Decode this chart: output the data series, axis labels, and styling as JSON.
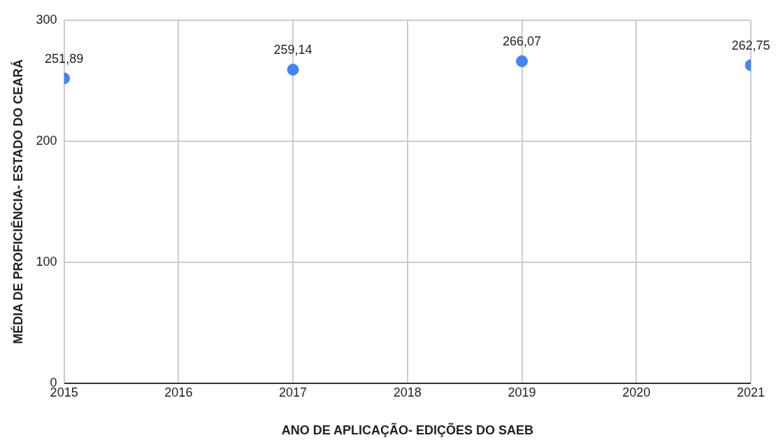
{
  "chart_data": {
    "type": "scatter",
    "xlabel": "ANO DE APLICAÇÃO- EDIÇÕES DO SAEB",
    "ylabel": "MÉDIA DE PROFICIÊNCIA- ESTADO DO CEARÁ",
    "x": [
      2015,
      2017,
      2019,
      2021
    ],
    "series": [
      {
        "color": "#4285f4",
        "values": [
          251.89,
          259.14,
          266.07,
          262.75
        ],
        "value_labels": [
          "251,89",
          "259,14",
          "266,07",
          "262,75"
        ]
      }
    ],
    "xlim": [
      2015,
      2021
    ],
    "xticks": [
      2015,
      2016,
      2017,
      2018,
      2019,
      2020,
      2021
    ],
    "ylim": [
      0,
      300
    ],
    "yticks": [
      0,
      100,
      200,
      300
    ],
    "grid": true,
    "legend": false,
    "marker": "circle"
  }
}
